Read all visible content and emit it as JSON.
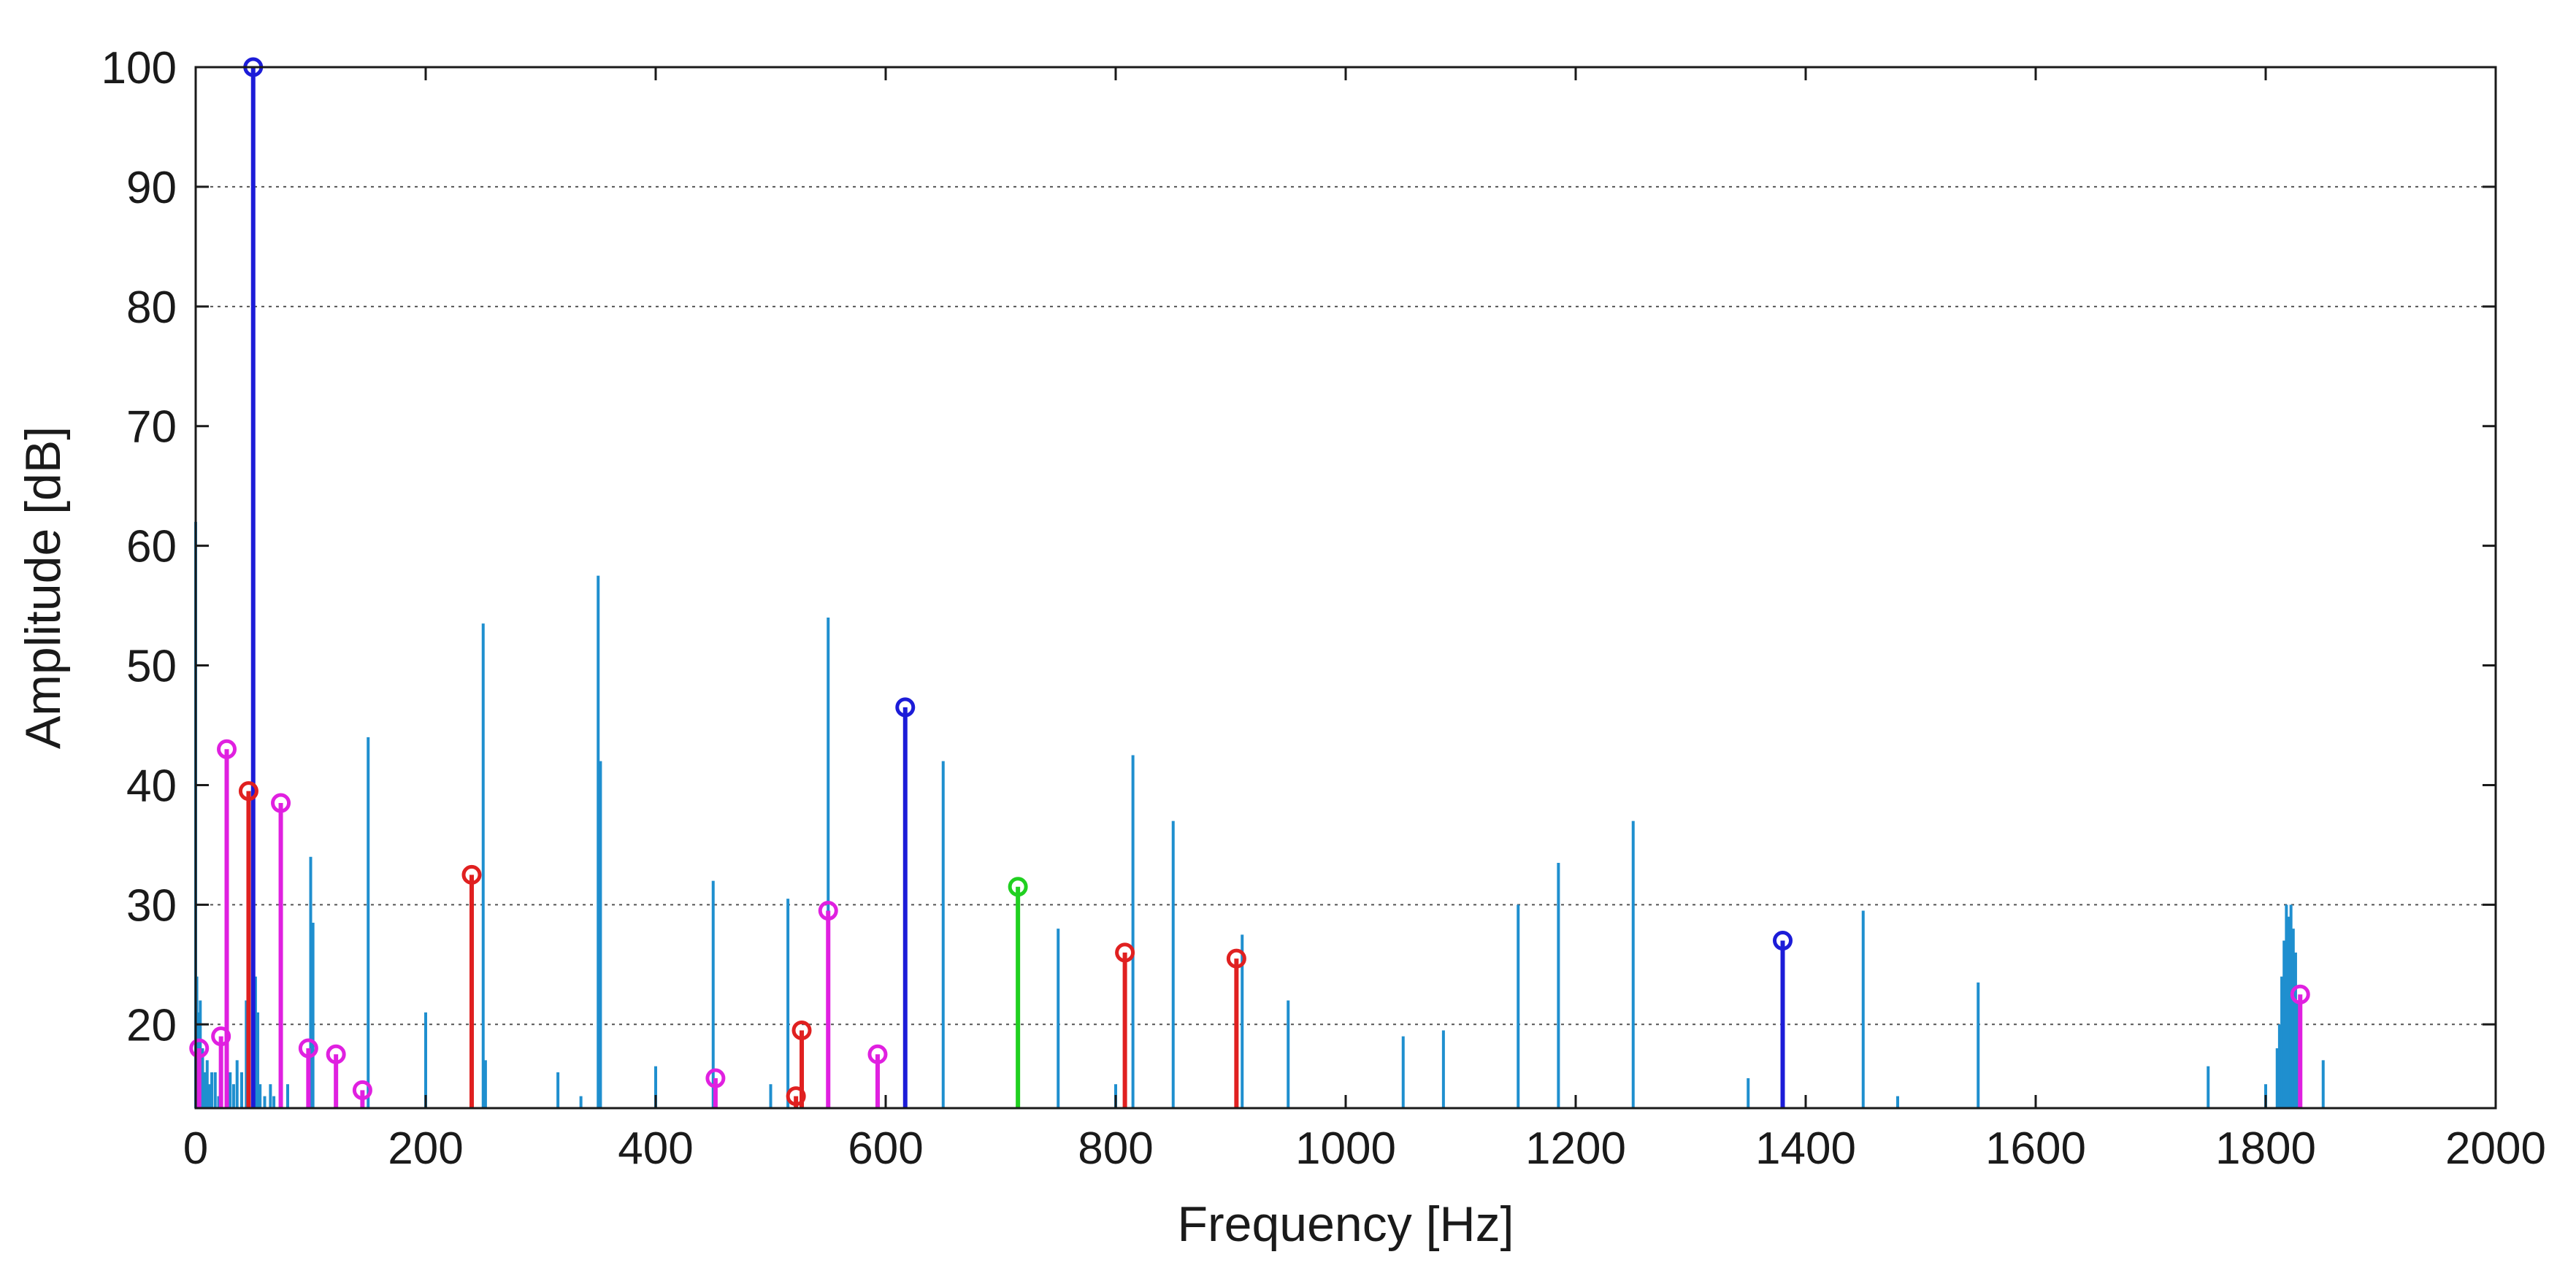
{
  "chart_data": {
    "type": "bar",
    "title": "",
    "xlabel": "Frequency [Hz]",
    "ylabel": "Amplitude [dB]",
    "xlim": [
      0,
      2000
    ],
    "ylim": [
      13,
      100
    ],
    "xticks": [
      0,
      200,
      400,
      600,
      800,
      1000,
      1200,
      1400,
      1600,
      1800,
      2000
    ],
    "yticks": [
      20,
      30,
      40,
      50,
      60,
      70,
      80,
      90,
      100
    ],
    "grid_y": [
      20,
      30,
      80,
      90
    ],
    "baseline": 13,
    "series": [
      {
        "color": "#1f8fcf",
        "marker": "none",
        "points": [
          [
            0,
            62
          ],
          [
            1,
            24
          ],
          [
            2,
            21
          ],
          [
            3,
            19
          ],
          [
            4,
            22
          ],
          [
            5,
            17
          ],
          [
            6,
            18
          ],
          [
            8,
            16
          ],
          [
            10,
            17
          ],
          [
            12,
            15
          ],
          [
            14,
            16
          ],
          [
            17,
            16
          ],
          [
            20,
            14
          ],
          [
            30,
            16
          ],
          [
            33,
            15
          ],
          [
            36,
            17
          ],
          [
            40,
            16
          ],
          [
            44,
            22
          ],
          [
            46,
            17
          ],
          [
            52,
            24
          ],
          [
            54,
            21
          ],
          [
            56,
            15
          ],
          [
            60,
            14
          ],
          [
            65,
            15
          ],
          [
            68,
            14
          ],
          [
            80,
            15
          ],
          [
            100,
            34
          ],
          [
            102,
            28.5
          ],
          [
            150,
            44
          ],
          [
            200,
            21
          ],
          [
            250,
            53.5
          ],
          [
            252,
            17
          ],
          [
            315,
            16
          ],
          [
            335,
            14
          ],
          [
            350,
            57.5
          ],
          [
            352,
            42
          ],
          [
            400,
            16.5
          ],
          [
            450,
            32
          ],
          [
            500,
            15
          ],
          [
            515,
            30.5
          ],
          [
            550,
            54
          ],
          [
            650,
            42
          ],
          [
            750,
            28
          ],
          [
            800,
            15
          ],
          [
            815,
            42.5
          ],
          [
            850,
            37
          ],
          [
            910,
            27.5
          ],
          [
            950,
            22
          ],
          [
            1050,
            19
          ],
          [
            1085,
            19.5
          ],
          [
            1150,
            30
          ],
          [
            1185,
            33.5
          ],
          [
            1250,
            37
          ],
          [
            1350,
            15.5
          ],
          [
            1450,
            29.5
          ],
          [
            1480,
            14
          ],
          [
            1550,
            23.5
          ],
          [
            1750,
            16.5
          ],
          [
            1800,
            15
          ],
          [
            1810,
            18
          ],
          [
            1812,
            20
          ],
          [
            1814,
            24
          ],
          [
            1816,
            27
          ],
          [
            1818,
            30
          ],
          [
            1820,
            29
          ],
          [
            1822,
            30
          ],
          [
            1824,
            28
          ],
          [
            1826,
            26
          ],
          [
            1828,
            22
          ],
          [
            1830,
            19
          ],
          [
            1850,
            17
          ]
        ]
      },
      {
        "color": "#1c1cd8",
        "marker": "circle",
        "points": [
          [
            50,
            100
          ],
          [
            617,
            46.5
          ],
          [
            1380,
            27
          ]
        ]
      },
      {
        "color": "#e02020",
        "marker": "circle",
        "points": [
          [
            46,
            39.5
          ],
          [
            240,
            32.5
          ],
          [
            522,
            14
          ],
          [
            527,
            19.5
          ],
          [
            808,
            26
          ],
          [
            905,
            25.5
          ]
        ]
      },
      {
        "color": "#e020e0",
        "marker": "circle",
        "points": [
          [
            3,
            18
          ],
          [
            22,
            19
          ],
          [
            27,
            43
          ],
          [
            74,
            38.5
          ],
          [
            98,
            18
          ],
          [
            122,
            17.5
          ],
          [
            145,
            14.5
          ],
          [
            452,
            15.5
          ],
          [
            550,
            29.5
          ],
          [
            593,
            17.5
          ],
          [
            1830,
            22.5
          ]
        ]
      },
      {
        "color": "#20d020",
        "marker": "circle",
        "points": [
          [
            715,
            31.5
          ]
        ]
      }
    ]
  }
}
